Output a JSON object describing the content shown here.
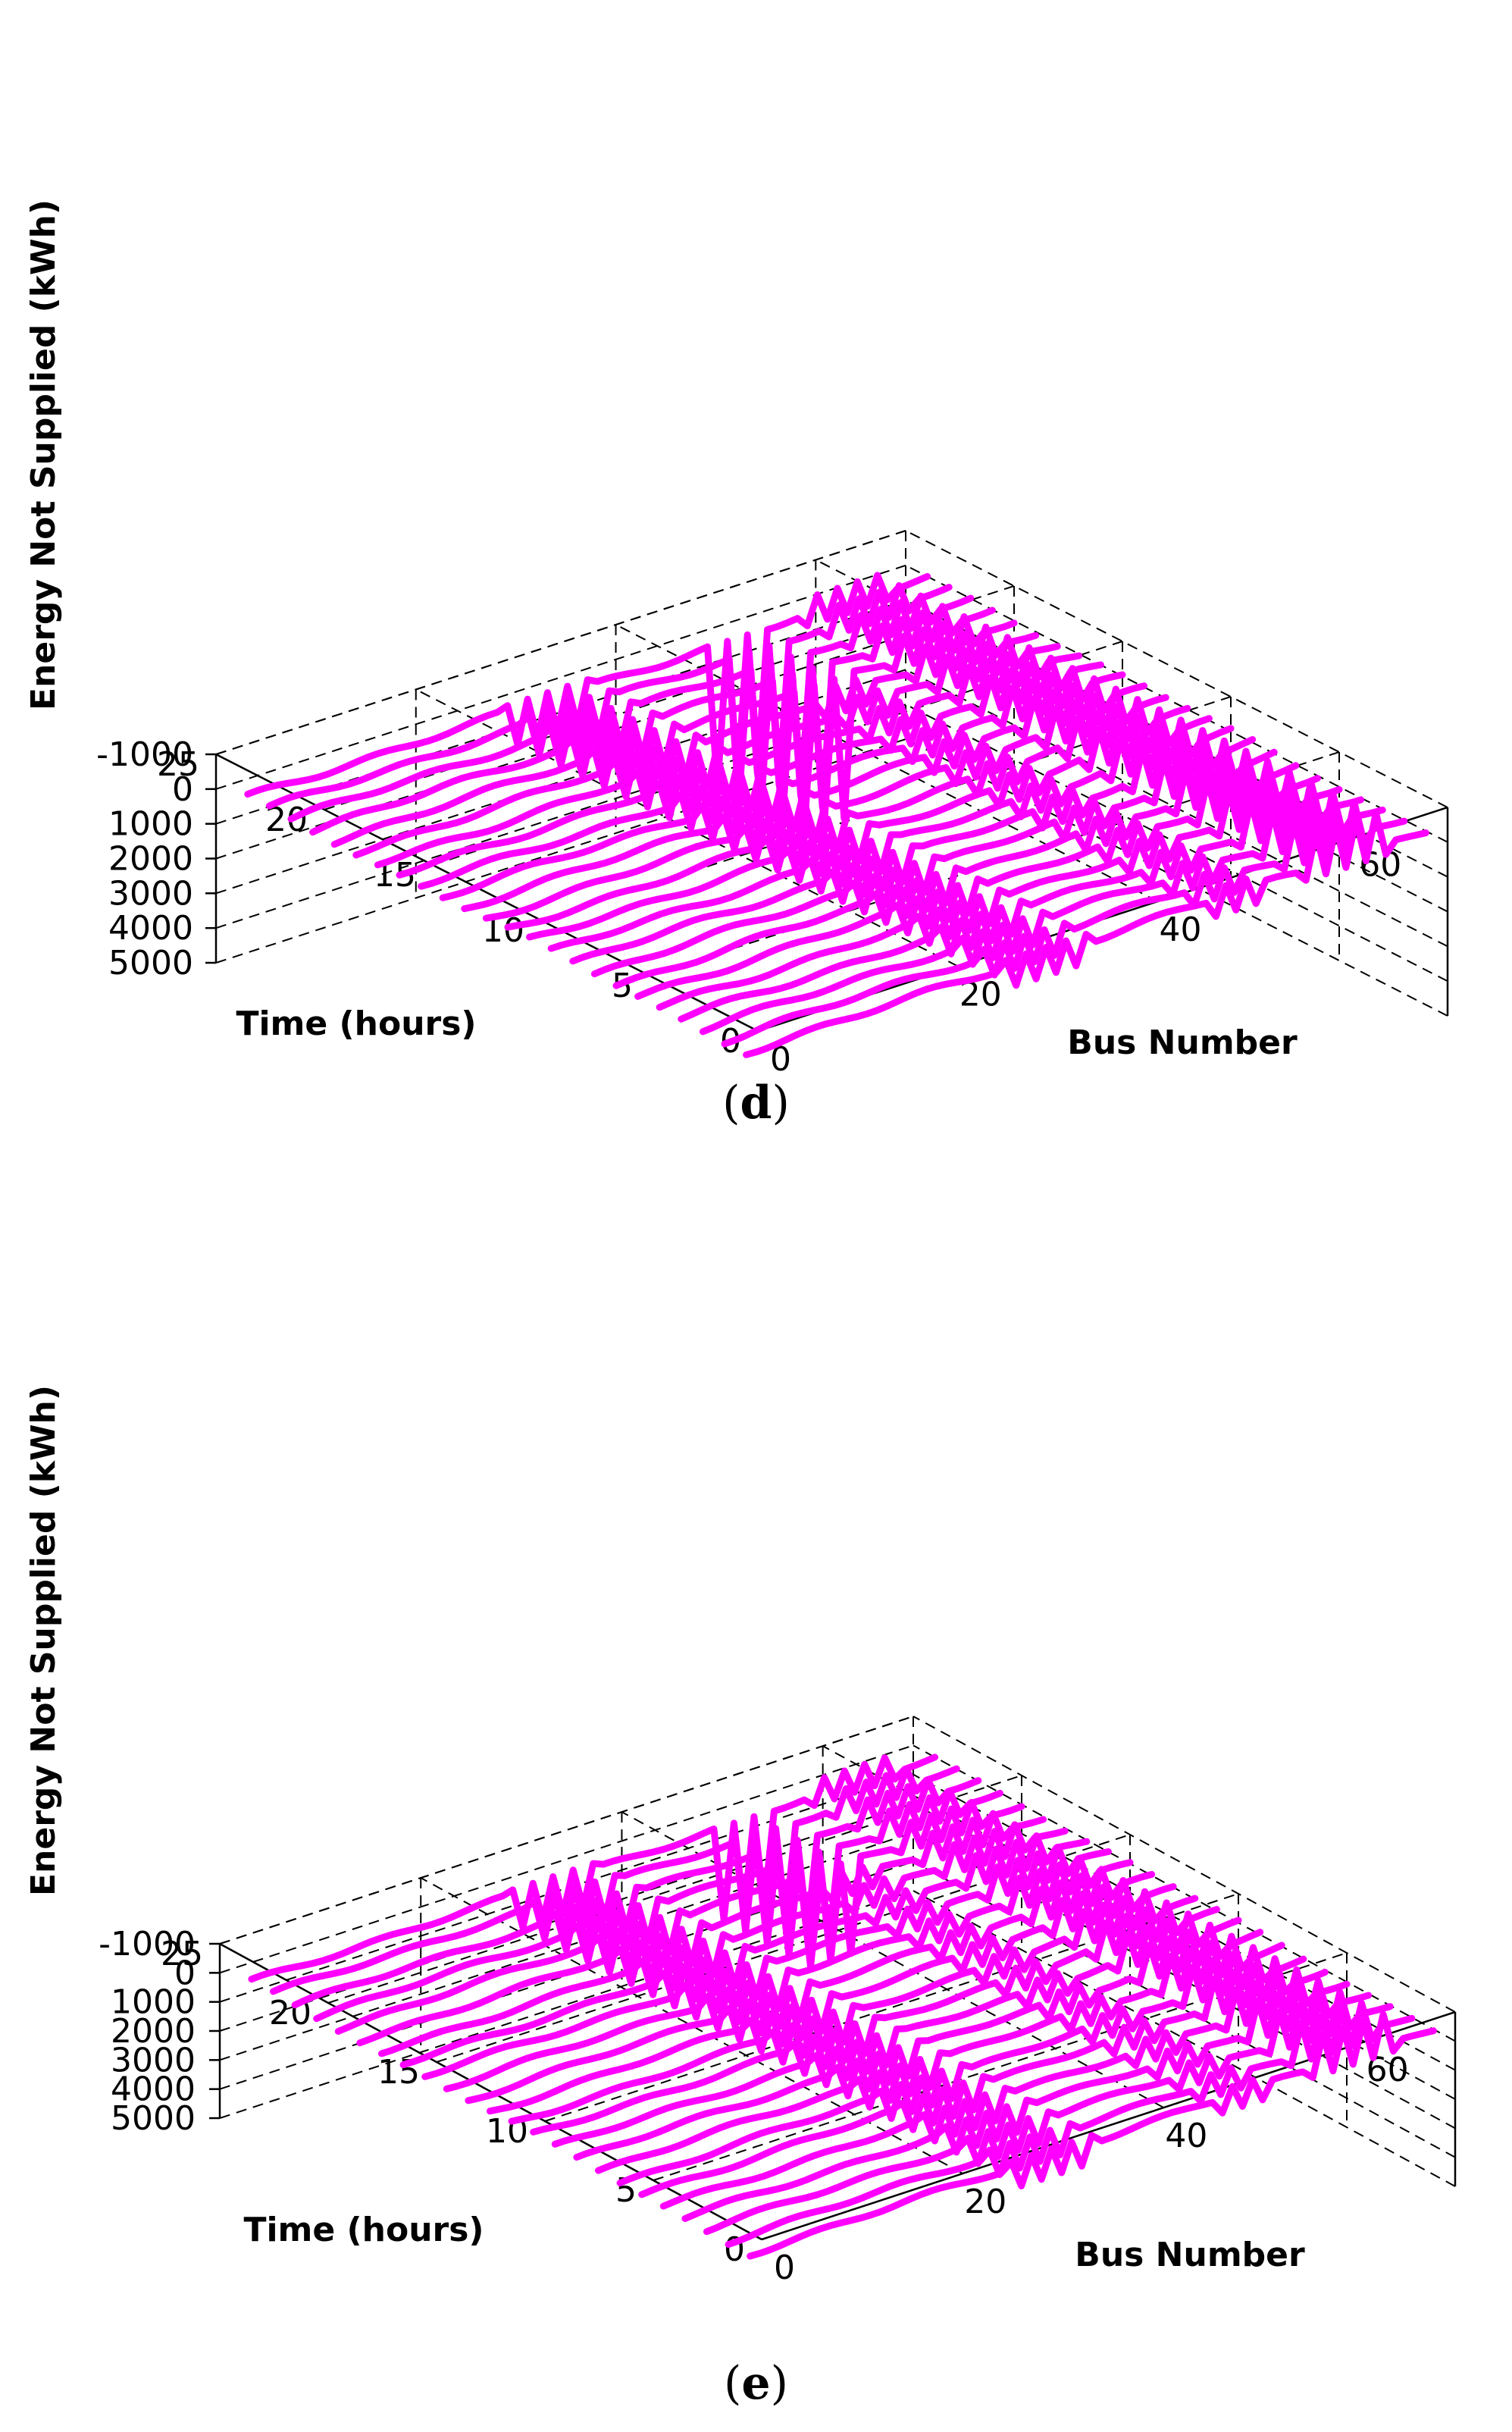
{
  "chart_data": [
    {
      "type": "line",
      "panel": "d",
      "caption_open": "(",
      "caption_letter": "d",
      "caption_close": ")",
      "zlabel": "Energy Not Supplied (kWh)",
      "xlabel": "Time (hours)",
      "ylabel": "Bus Number",
      "z_ticks": [
        "5000",
        "4000",
        "3000",
        "2000",
        "1000",
        "0",
        "-1000"
      ],
      "z_tick_values": [
        5000,
        4000,
        3000,
        2000,
        1000,
        0,
        -1000
      ],
      "time_ticks": [
        "25",
        "20",
        "15",
        "10",
        "5",
        "0"
      ],
      "time_tick_values": [
        25,
        20,
        15,
        10,
        5,
        0
      ],
      "bus_ticks": [
        "0",
        "20",
        "40",
        "60"
      ],
      "bus_tick_values": [
        0,
        20,
        40,
        60
      ],
      "zlim": [
        -1000,
        5000
      ],
      "time_range": [
        0,
        25
      ],
      "bus_range": [
        0,
        69
      ],
      "line_color": "#ff00ff",
      "grid": true,
      "hours": 24,
      "buses": 69,
      "peak_value_kWh": 4100,
      "peak_buses": [
        48,
        49,
        50,
        51,
        52
      ],
      "peak_hours": [
        20,
        21,
        22,
        23,
        24
      ],
      "mid_group_value_kWh": 1000,
      "mid_group_buses": [
        27,
        28,
        29,
        30,
        31,
        32,
        33,
        34,
        35
      ],
      "dip_value_kWh": -1000,
      "dip_buses": [
        57,
        58,
        59,
        60,
        61,
        62,
        63,
        64,
        65
      ]
    },
    {
      "type": "line",
      "panel": "e",
      "caption_open": "(",
      "caption_letter": "e",
      "caption_close": ")",
      "zlabel": "Energy Not Supplied (kWh)",
      "xlabel": "Time (hours)",
      "ylabel": "Bus Number",
      "z_ticks": [
        "5000",
        "4000",
        "3000",
        "2000",
        "1000",
        "0",
        "-1000"
      ],
      "z_tick_values": [
        5000,
        4000,
        3000,
        2000,
        1000,
        0,
        -1000
      ],
      "time_ticks": [
        "25",
        "20",
        "15",
        "10",
        "5",
        "0"
      ],
      "time_tick_values": [
        25,
        20,
        15,
        10,
        5,
        0
      ],
      "bus_ticks": [
        "0",
        "20",
        "40",
        "60"
      ],
      "bus_tick_values": [
        0,
        20,
        40,
        60
      ],
      "zlim": [
        -1000,
        5000
      ],
      "time_range": [
        0,
        25
      ],
      "bus_range": [
        0,
        69
      ],
      "line_color": "#ff00ff",
      "grid": true,
      "hours": 24,
      "buses": 69,
      "peak_value_kWh": 3200,
      "peak_buses": [
        48,
        49,
        50,
        51,
        52
      ],
      "peak_hours": [
        20,
        21,
        22,
        23,
        24
      ],
      "mid_group_value_kWh": 1200,
      "mid_group_buses": [
        27,
        28,
        29,
        30,
        31,
        32,
        33,
        34,
        35
      ],
      "dip_value_kWh": -1100,
      "dip_buses": [
        57,
        58,
        59,
        60,
        61,
        62,
        63,
        64,
        65
      ]
    }
  ]
}
